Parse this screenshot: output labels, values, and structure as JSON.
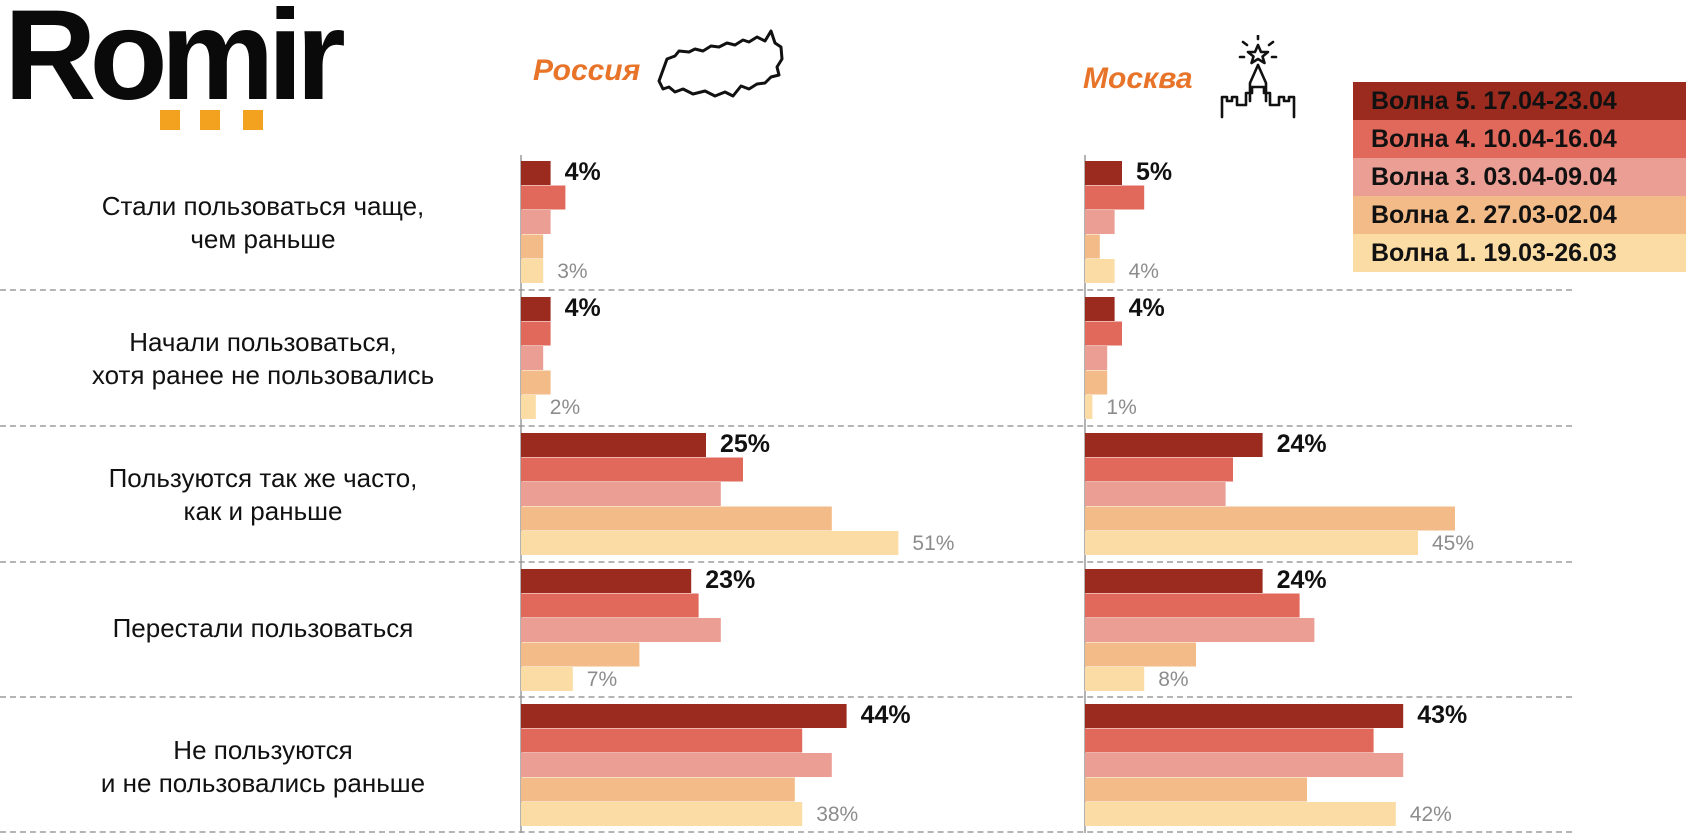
{
  "logo": {
    "text": "Romir",
    "dot_color": "#f3a21f"
  },
  "colors": [
    "#9b2b1f",
    "#e1695c",
    "#eb9e94",
    "#f3bb87",
    "#fbdca4"
  ],
  "chart_data": {
    "type": "bar",
    "orientation": "horizontal",
    "categories": [
      [
        "Стали пользоваться чаще,",
        "чем раньше"
      ],
      [
        "Начали пользоваться,",
        "хотя ранее не пользовались"
      ],
      [
        "Пользуются так же часто,",
        "как и раньше"
      ],
      [
        "Перестали пользоваться"
      ],
      [
        "Не пользуются",
        "и не пользовались раньше"
      ]
    ],
    "legend": [
      "Волна 5. 17.04-23.04",
      "Волна 4. 10.04-16.04",
      "Волна 3. 03.04-09.04",
      "Волна 2. 27.03-02.04",
      "Волна 1. 19.03-26.03"
    ],
    "legend_position": "top-right",
    "panels": [
      {
        "title": "Россия",
        "icon": "russia-map-icon",
        "values": [
          [
            4,
            6,
            4,
            3,
            3
          ],
          [
            4,
            4,
            3,
            4,
            2
          ],
          [
            25,
            30,
            27,
            42,
            51
          ],
          [
            23,
            24,
            27,
            16,
            7
          ],
          [
            44,
            38,
            42,
            37,
            38
          ]
        ],
        "labels": [
          [
            "4%",
            "3%"
          ],
          [
            "4%",
            "2%"
          ],
          [
            "25%",
            "51%"
          ],
          [
            "23%",
            "7%"
          ],
          [
            "44%",
            "38%"
          ]
        ]
      },
      {
        "title": "Москва",
        "icon": "kremlin-tower-icon",
        "values": [
          [
            5,
            8,
            4,
            2,
            4
          ],
          [
            4,
            5,
            3,
            3,
            1
          ],
          [
            24,
            20,
            19,
            50,
            45
          ],
          [
            24,
            29,
            31,
            15,
            8
          ],
          [
            43,
            39,
            43,
            30,
            42
          ]
        ],
        "labels": [
          [
            "5%",
            "4%"
          ],
          [
            "4%",
            "1%"
          ],
          [
            "24%",
            "45%"
          ],
          [
            "24%",
            "8%"
          ],
          [
            "43%",
            "42%"
          ]
        ]
      }
    ],
    "title_color": "#e8742a",
    "grid": false
  }
}
